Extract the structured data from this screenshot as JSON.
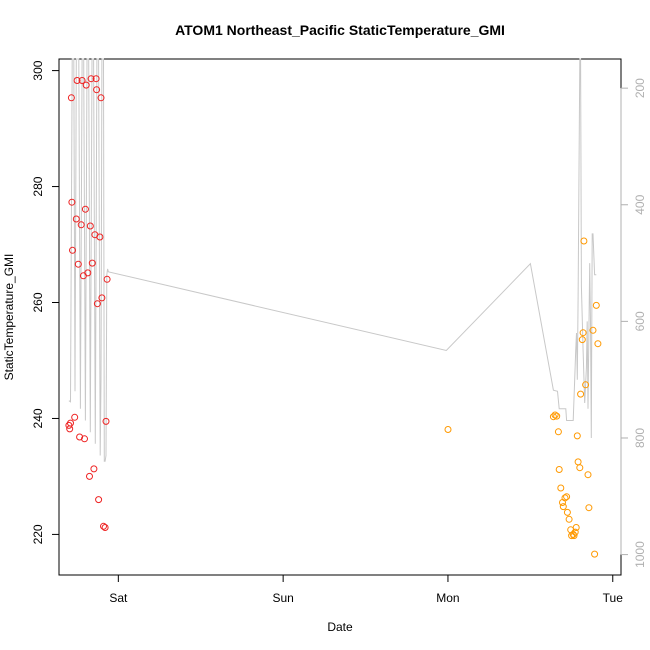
{
  "chart_data": {
    "type": "scatter",
    "title": "ATOM1 Northeast_Pacific StaticTemperature_GMI",
    "xlabel": "Date",
    "ylabel": "StaticTemperature_GMI",
    "x_unit": "days since Friday 00:00",
    "xlim": [
      0.64,
      4.05
    ],
    "ylim": [
      213,
      302
    ],
    "x_ticks": [
      {
        "value": 1,
        "label": "Sat"
      },
      {
        "value": 2,
        "label": "Sun"
      },
      {
        "value": 3,
        "label": "Mon"
      },
      {
        "value": 4,
        "label": "Tue"
      }
    ],
    "y_ticks": [
      220,
      240,
      260,
      280,
      300
    ],
    "right_axis": {
      "ylim": [
        1035,
        150
      ],
      "ticks": [
        200,
        400,
        600,
        800,
        1000
      ],
      "color": "#b0b0b0"
    },
    "series": [
      {
        "color": "#ee2222",
        "points": [
          [
            0.7,
            238.8
          ],
          [
            0.705,
            238.2
          ],
          [
            0.71,
            239.2
          ],
          [
            0.715,
            295.3
          ],
          [
            0.718,
            277.3
          ],
          [
            0.722,
            269.0
          ],
          [
            0.735,
            240.2
          ],
          [
            0.745,
            274.4
          ],
          [
            0.75,
            298.3
          ],
          [
            0.757,
            266.6
          ],
          [
            0.765,
            236.8
          ],
          [
            0.775,
            273.4
          ],
          [
            0.78,
            298.3
          ],
          [
            0.788,
            264.6
          ],
          [
            0.795,
            236.5
          ],
          [
            0.8,
            276.1
          ],
          [
            0.805,
            297.5
          ],
          [
            0.815,
            265.1
          ],
          [
            0.825,
            230.0
          ],
          [
            0.83,
            273.2
          ],
          [
            0.835,
            298.6
          ],
          [
            0.842,
            266.8
          ],
          [
            0.852,
            231.3
          ],
          [
            0.858,
            271.7
          ],
          [
            0.865,
            298.6
          ],
          [
            0.868,
            296.7
          ],
          [
            0.873,
            259.8
          ],
          [
            0.88,
            226.0
          ],
          [
            0.888,
            271.3
          ],
          [
            0.895,
            295.3
          ],
          [
            0.9,
            260.8
          ],
          [
            0.91,
            221.4
          ],
          [
            0.92,
            221.2
          ],
          [
            0.925,
            239.5
          ],
          [
            0.932,
            264.0
          ]
        ]
      },
      {
        "color": "#ff9900",
        "points": [
          [
            3.0,
            238.1
          ],
          [
            3.64,
            240.3
          ],
          [
            3.65,
            240.6
          ],
          [
            3.66,
            240.4
          ],
          [
            3.67,
            237.7
          ],
          [
            3.675,
            231.2
          ],
          [
            3.685,
            228.0
          ],
          [
            3.695,
            225.5
          ],
          [
            3.7,
            224.8
          ],
          [
            3.71,
            226.3
          ],
          [
            3.72,
            226.5
          ],
          [
            3.725,
            223.8
          ],
          [
            3.735,
            222.6
          ],
          [
            3.745,
            220.8
          ],
          [
            3.75,
            219.8
          ],
          [
            3.76,
            220.0
          ],
          [
            3.765,
            219.8
          ],
          [
            3.772,
            220.4
          ],
          [
            3.778,
            221.2
          ],
          [
            3.785,
            237.0
          ],
          [
            3.79,
            232.5
          ],
          [
            3.8,
            231.5
          ],
          [
            3.805,
            244.2
          ],
          [
            3.815,
            253.6
          ],
          [
            3.82,
            254.8
          ],
          [
            3.825,
            270.6
          ],
          [
            3.835,
            245.8
          ],
          [
            3.85,
            230.3
          ],
          [
            3.855,
            224.6
          ],
          [
            3.88,
            255.2
          ],
          [
            3.89,
            216.6
          ],
          [
            3.9,
            259.5
          ],
          [
            3.91,
            252.9
          ]
        ]
      }
    ],
    "pressure_line": {
      "color": "#c8c8c8",
      "points": [
        [
          0.7,
          736
        ],
        [
          0.71,
          738
        ],
        [
          0.72,
          150
        ],
        [
          0.73,
          150
        ],
        [
          0.737,
          720
        ],
        [
          0.745,
          150
        ],
        [
          0.76,
          150
        ],
        [
          0.77,
          750
        ],
        [
          0.78,
          150
        ],
        [
          0.79,
          150
        ],
        [
          0.8,
          770
        ],
        [
          0.81,
          150
        ],
        [
          0.82,
          150
        ],
        [
          0.83,
          790
        ],
        [
          0.84,
          150
        ],
        [
          0.85,
          150
        ],
        [
          0.86,
          810
        ],
        [
          0.87,
          150
        ],
        [
          0.88,
          150
        ],
        [
          0.89,
          830
        ],
        [
          0.895,
          700
        ],
        [
          0.9,
          150
        ],
        [
          0.91,
          150
        ],
        [
          0.915,
          840
        ],
        [
          0.92,
          840
        ],
        [
          0.925,
          830
        ],
        [
          0.93,
          520
        ],
        [
          0.935,
          510
        ],
        [
          0.94,
          515
        ],
        [
          2.99,
          650
        ],
        [
          3.5,
          501
        ],
        [
          3.64,
          718
        ],
        [
          3.665,
          720
        ],
        [
          3.675,
          750
        ],
        [
          3.7,
          750
        ],
        [
          3.715,
          750
        ],
        [
          3.72,
          770
        ],
        [
          3.74,
          770
        ],
        [
          3.76,
          770
        ],
        [
          3.77,
          690
        ],
        [
          3.775,
          650
        ],
        [
          3.78,
          620
        ],
        [
          3.785,
          700
        ],
        [
          3.79,
          560
        ],
        [
          3.8,
          150
        ],
        [
          3.805,
          150
        ],
        [
          3.81,
          540
        ],
        [
          3.82,
          650
        ],
        [
          3.83,
          740
        ],
        [
          3.84,
          680
        ],
        [
          3.845,
          600
        ],
        [
          3.85,
          750
        ],
        [
          3.86,
          500
        ],
        [
          3.865,
          600
        ],
        [
          3.87,
          800
        ],
        [
          3.875,
          450
        ],
        [
          3.88,
          450
        ],
        [
          3.89,
          520
        ],
        [
          3.9,
          520
        ]
      ]
    }
  }
}
